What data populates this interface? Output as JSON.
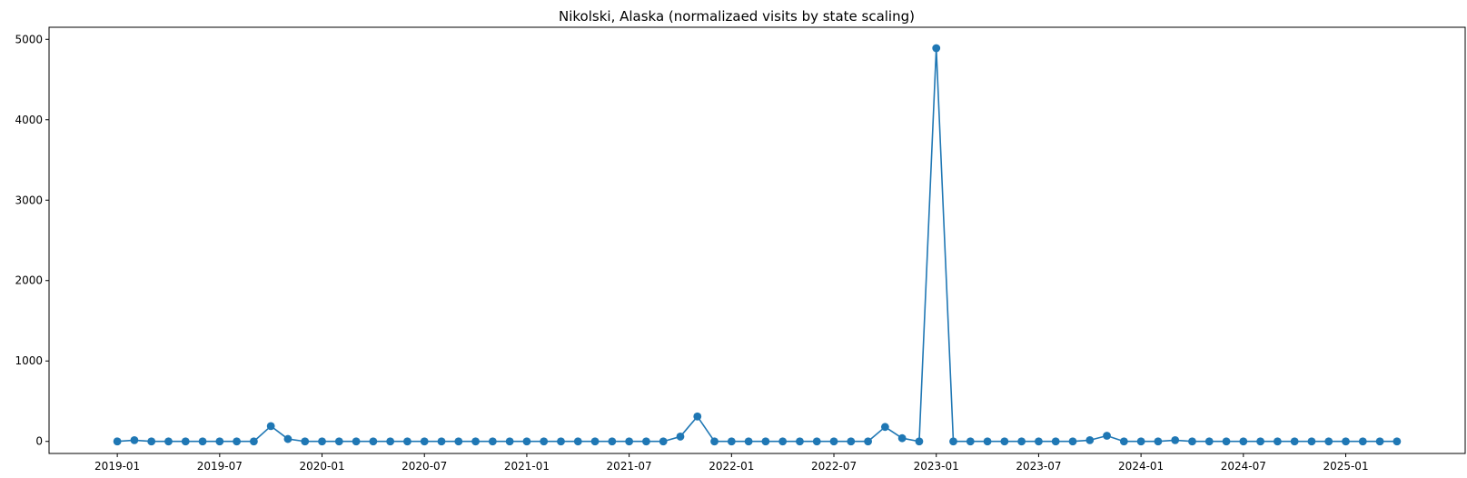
{
  "chart_data": {
    "type": "line",
    "title": "Nikolski, Alaska (normalizaed visits by state scaling)",
    "xlabel": "",
    "ylabel": "",
    "x": [
      "2019-01",
      "2019-02",
      "2019-03",
      "2019-04",
      "2019-05",
      "2019-06",
      "2019-07",
      "2019-08",
      "2019-09",
      "2019-10",
      "2019-11",
      "2019-12",
      "2020-01",
      "2020-02",
      "2020-03",
      "2020-04",
      "2020-05",
      "2020-06",
      "2020-07",
      "2020-08",
      "2020-09",
      "2020-10",
      "2020-11",
      "2020-12",
      "2021-01",
      "2021-02",
      "2021-03",
      "2021-04",
      "2021-05",
      "2021-06",
      "2021-07",
      "2021-08",
      "2021-09",
      "2021-10",
      "2021-11",
      "2021-12",
      "2022-01",
      "2022-02",
      "2022-03",
      "2022-04",
      "2022-05",
      "2022-06",
      "2022-07",
      "2022-08",
      "2022-09",
      "2022-10",
      "2022-11",
      "2022-12",
      "2023-01",
      "2023-02",
      "2023-03",
      "2023-04",
      "2023-05",
      "2023-06",
      "2023-07",
      "2023-08",
      "2023-09",
      "2023-10",
      "2023-11",
      "2023-12",
      "2024-01",
      "2024-02",
      "2024-03",
      "2024-04",
      "2024-05",
      "2024-06",
      "2024-07",
      "2024-08",
      "2024-09",
      "2024-10",
      "2024-11",
      "2024-12",
      "2025-01",
      "2025-02",
      "2025-03",
      "2025-04"
    ],
    "series": [
      {
        "name": "",
        "color": "#1f77b4",
        "values": [
          0,
          15,
          0,
          0,
          0,
          0,
          0,
          0,
          0,
          190,
          30,
          0,
          0,
          0,
          0,
          0,
          0,
          0,
          0,
          0,
          0,
          0,
          0,
          0,
          0,
          0,
          0,
          0,
          0,
          0,
          0,
          0,
          0,
          60,
          310,
          0,
          0,
          0,
          0,
          0,
          0,
          0,
          0,
          0,
          0,
          180,
          40,
          0,
          4890,
          0,
          0,
          0,
          0,
          0,
          0,
          0,
          0,
          15,
          70,
          0,
          0,
          0,
          15,
          0,
          0,
          0,
          0,
          0,
          0,
          0,
          0,
          0,
          0,
          0,
          0,
          0
        ]
      }
    ],
    "x_ticks": [
      "2019-01",
      "2019-07",
      "2020-01",
      "2020-07",
      "2021-01",
      "2021-07",
      "2022-01",
      "2022-07",
      "2023-01",
      "2023-07",
      "2024-01",
      "2024-07",
      "2025-01"
    ],
    "y_ticks": [
      0,
      1000,
      2000,
      3000,
      4000,
      5000
    ],
    "xlim": [
      "2018-09",
      "2025-08"
    ],
    "ylim": [
      -150,
      5150
    ],
    "grid": false,
    "legend": "none"
  }
}
